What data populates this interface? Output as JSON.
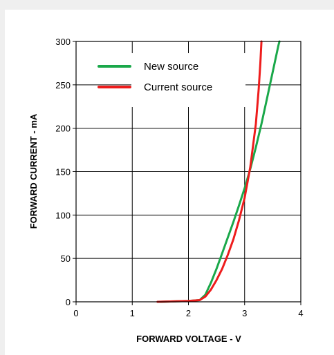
{
  "chart_data": {
    "type": "line",
    "title": "",
    "xlabel": "FORWARD VOLTAGE - V",
    "ylabel": "FORWARD CURRENT - mA",
    "xlim": [
      0,
      4
    ],
    "ylim": [
      0,
      300
    ],
    "x_ticks": [
      "0",
      "1",
      "2",
      "3",
      "4"
    ],
    "y_ticks": [
      "0",
      "50",
      "100",
      "150",
      "200",
      "250",
      "300"
    ],
    "grid": true,
    "legend_position": "top-left",
    "series": [
      {
        "name": "New source",
        "color": "#1aa84a",
        "points": [
          [
            1.5,
            0
          ],
          [
            2.0,
            1
          ],
          [
            2.2,
            2
          ],
          [
            2.3,
            8
          ],
          [
            2.4,
            22
          ],
          [
            2.5,
            38
          ],
          [
            2.6,
            56
          ],
          [
            2.7,
            74
          ],
          [
            2.8,
            92
          ],
          [
            2.9,
            111
          ],
          [
            3.0,
            131
          ],
          [
            3.1,
            153
          ],
          [
            3.2,
            178
          ],
          [
            3.3,
            205
          ],
          [
            3.4,
            235
          ],
          [
            3.5,
            265
          ],
          [
            3.6,
            295
          ],
          [
            3.62,
            300
          ]
        ]
      },
      {
        "name": "Current source",
        "color": "#ee1c1c",
        "points": [
          [
            1.45,
            0
          ],
          [
            2.0,
            1
          ],
          [
            2.2,
            2
          ],
          [
            2.3,
            6
          ],
          [
            2.4,
            14
          ],
          [
            2.5,
            25
          ],
          [
            2.6,
            38
          ],
          [
            2.7,
            54
          ],
          [
            2.8,
            72
          ],
          [
            2.9,
            94
          ],
          [
            3.0,
            120
          ],
          [
            3.1,
            155
          ],
          [
            3.2,
            205
          ],
          [
            3.25,
            245
          ],
          [
            3.28,
            275
          ],
          [
            3.3,
            300
          ]
        ]
      }
    ]
  }
}
